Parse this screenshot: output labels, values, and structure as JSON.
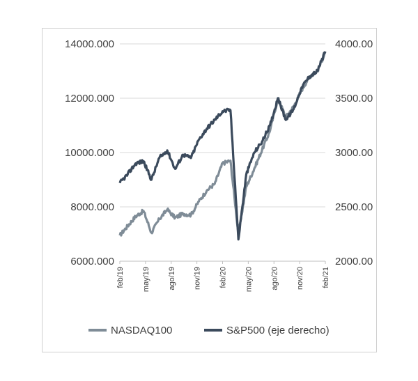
{
  "chart_data": {
    "type": "line",
    "x_labels": [
      "feb/19",
      "may/19",
      "ago/19",
      "nov/19",
      "feb/20",
      "may/20",
      "ago/20",
      "nov/20",
      "feb/21"
    ],
    "y_left": {
      "ticks": [
        "6000.000",
        "8000.000",
        "10000.000",
        "12000.000",
        "14000.000"
      ],
      "range": [
        6000,
        14000
      ]
    },
    "y_right": {
      "ticks": [
        "2000.00",
        "2500.00",
        "3000.00",
        "3500.00",
        "4000.00"
      ],
      "range": [
        2000,
        4000
      ]
    },
    "grid": true,
    "legend_position": "bottom",
    "series": [
      {
        "name": "NASDAQ100",
        "axis": "left",
        "color": "#7f8c97",
        "points": [
          [
            "feb/19",
            6950
          ],
          [
            "mar/19",
            7300
          ],
          [
            "abr/19",
            7650
          ],
          [
            "may/19",
            7850
          ],
          [
            "jun/19",
            7050
          ],
          [
            "jun/19b",
            7550
          ],
          [
            "jul/19",
            7900
          ],
          [
            "ago/19",
            7600
          ],
          [
            "sep/19",
            7750
          ],
          [
            "oct/19",
            7700
          ],
          [
            "nov/19",
            8200
          ],
          [
            "dic/19",
            8600
          ],
          [
            "ene/20",
            8850
          ],
          [
            "feb/20",
            9600
          ],
          [
            "feb/20b",
            9700
          ],
          [
            "mar/20",
            7000
          ],
          [
            "abr/20",
            8750
          ],
          [
            "may/20",
            9400
          ],
          [
            "jun/20",
            10100
          ],
          [
            "jul/20",
            10800
          ],
          [
            "ago/20",
            12000
          ],
          [
            "sep/20",
            11300
          ],
          [
            "oct/20",
            11700
          ],
          [
            "nov/20",
            12300
          ],
          [
            "dic/20",
            12800
          ],
          [
            "ene/21",
            13000
          ],
          [
            "feb/21",
            13700
          ]
        ]
      },
      {
        "name": "S&P500 (eje derecho)",
        "axis": "right",
        "color": "#3b4a5c",
        "points": [
          [
            "feb/19",
            2720
          ],
          [
            "mar/19",
            2800
          ],
          [
            "abr/19",
            2900
          ],
          [
            "may/19",
            2920
          ],
          [
            "jun/19",
            2750
          ],
          [
            "jun/19b",
            2950
          ],
          [
            "jul/19",
            3020
          ],
          [
            "ago/19",
            2850
          ],
          [
            "sep/19",
            2980
          ],
          [
            "oct/19",
            2950
          ],
          [
            "nov/19",
            3120
          ],
          [
            "dic/19",
            3220
          ],
          [
            "ene/20",
            3300
          ],
          [
            "feb/20",
            3380
          ],
          [
            "feb/20b",
            3390
          ],
          [
            "mar/20",
            2200
          ],
          [
            "abr/20",
            2800
          ],
          [
            "may/20",
            3000
          ],
          [
            "jun/20",
            3100
          ],
          [
            "jul/20",
            3250
          ],
          [
            "ago/20",
            3500
          ],
          [
            "sep/20",
            3300
          ],
          [
            "oct/20",
            3400
          ],
          [
            "nov/20",
            3600
          ],
          [
            "dic/20",
            3700
          ],
          [
            "ene/21",
            3750
          ],
          [
            "feb/21",
            3930
          ]
        ]
      }
    ]
  }
}
